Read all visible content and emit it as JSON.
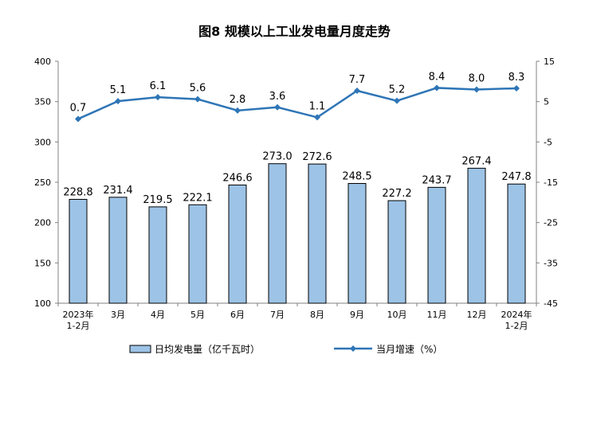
{
  "chart_data": {
    "type": "bar+line",
    "title": "图8  规模以上工业发电量月度走势",
    "categories": [
      "2023年\n1-2月",
      "3月",
      "4月",
      "5月",
      "6月",
      "7月",
      "8月",
      "9月",
      "10月",
      "11月",
      "12月",
      "2024年\n1-2月"
    ],
    "series": [
      {
        "name": "日均发电量（亿千瓦时）",
        "type": "bar",
        "axis": "left",
        "color": "#9DC3E6",
        "values": [
          228.8,
          231.4,
          219.5,
          222.1,
          246.6,
          273.0,
          272.6,
          248.5,
          227.2,
          243.7,
          267.4,
          247.8
        ],
        "labels": [
          "228.8",
          "231.4",
          "219.5",
          "222.1",
          "246.6",
          "273.0",
          "272.6",
          "248.5",
          "227.2",
          "243.7",
          "267.4",
          "247.8"
        ]
      },
      {
        "name": "当月增速（%）",
        "type": "line",
        "axis": "right",
        "color": "#2E75B6",
        "values": [
          0.7,
          5.1,
          6.1,
          5.6,
          2.8,
          3.6,
          1.1,
          7.7,
          5.2,
          8.4,
          8.0,
          8.3
        ],
        "labels": [
          "0.7",
          "5.1",
          "6.1",
          "5.6",
          "2.8",
          "3.6",
          "1.1",
          "7.7",
          "5.2",
          "8.4",
          "8.0",
          "8.3"
        ]
      }
    ],
    "y_left": {
      "min": 100,
      "max": 400,
      "ticks": [
        "100",
        "150",
        "200",
        "250",
        "300",
        "350",
        "400"
      ]
    },
    "y_right": {
      "min": -45,
      "max": 15,
      "ticks": [
        "-45",
        "-35",
        "-25",
        "-15",
        "-5",
        "5",
        "15"
      ]
    },
    "legend_position": "bottom",
    "grid": false
  }
}
